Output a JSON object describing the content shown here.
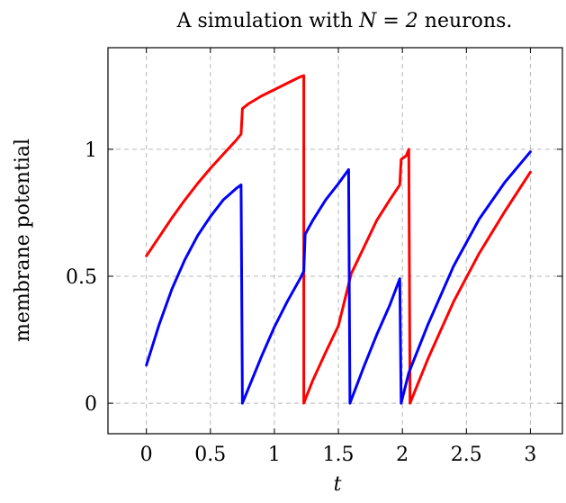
{
  "chart_data": {
    "type": "line",
    "title_pre": "A simulation with ",
    "title_math": "N = 2",
    "title_post": " neurons.",
    "xlabel": "t",
    "ylabel": "membrane potential",
    "xlim": [
      -0.3,
      3.25
    ],
    "ylim": [
      -0.12,
      1.4
    ],
    "xticks": [
      0,
      0.5,
      1,
      1.5,
      2,
      2.5,
      3
    ],
    "xtick_labels": [
      "0",
      "0.5",
      "1",
      "1.5",
      "2",
      "2.5",
      "3"
    ],
    "yticks": [
      0,
      0.5,
      1
    ],
    "ytick_labels": [
      "0",
      "0.5",
      "1"
    ],
    "grid": true,
    "series": [
      {
        "color": "#ff0000",
        "points": [
          [
            0,
            0.58
          ],
          [
            0.1,
            0.655
          ],
          [
            0.2,
            0.73
          ],
          [
            0.3,
            0.8
          ],
          [
            0.4,
            0.865
          ],
          [
            0.5,
            0.925
          ],
          [
            0.6,
            0.98
          ],
          [
            0.7,
            1.035
          ],
          [
            0.74,
            1.06
          ],
          [
            0.75,
            1.16
          ],
          [
            0.8,
            1.18
          ],
          [
            0.9,
            1.21
          ],
          [
            1.0,
            1.235
          ],
          [
            1.1,
            1.26
          ],
          [
            1.2,
            1.285
          ],
          [
            1.23,
            1.29
          ],
          [
            1.23,
            0
          ],
          [
            1.3,
            0.09
          ],
          [
            1.4,
            0.2
          ],
          [
            1.5,
            0.305
          ],
          [
            1.6,
            0.51
          ],
          [
            1.7,
            0.615
          ],
          [
            1.8,
            0.72
          ],
          [
            1.9,
            0.8
          ],
          [
            1.98,
            0.86
          ],
          [
            1.99,
            0.96
          ],
          [
            2.03,
            0.975
          ],
          [
            2.05,
            1.0
          ],
          [
            2.06,
            0
          ],
          [
            2.2,
            0.175
          ],
          [
            2.4,
            0.4
          ],
          [
            2.6,
            0.59
          ],
          [
            2.8,
            0.755
          ],
          [
            3.0,
            0.91
          ]
        ]
      },
      {
        "color": "#0000ff",
        "points": [
          [
            0,
            0.15
          ],
          [
            0.1,
            0.31
          ],
          [
            0.2,
            0.45
          ],
          [
            0.3,
            0.565
          ],
          [
            0.4,
            0.66
          ],
          [
            0.5,
            0.735
          ],
          [
            0.6,
            0.8
          ],
          [
            0.7,
            0.845
          ],
          [
            0.74,
            0.86
          ],
          [
            0.75,
            0
          ],
          [
            0.9,
            0.185
          ],
          [
            1.0,
            0.3
          ],
          [
            1.1,
            0.4
          ],
          [
            1.2,
            0.49
          ],
          [
            1.23,
            0.52
          ],
          [
            1.24,
            0.665
          ],
          [
            1.3,
            0.72
          ],
          [
            1.4,
            0.8
          ],
          [
            1.5,
            0.865
          ],
          [
            1.58,
            0.92
          ],
          [
            1.59,
            0
          ],
          [
            1.7,
            0.145
          ],
          [
            1.8,
            0.27
          ],
          [
            1.9,
            0.385
          ],
          [
            1.98,
            0.49
          ],
          [
            1.99,
            0
          ],
          [
            2.05,
            0.12
          ],
          [
            2.2,
            0.31
          ],
          [
            2.4,
            0.54
          ],
          [
            2.6,
            0.725
          ],
          [
            2.8,
            0.87
          ],
          [
            3.0,
            0.99
          ]
        ]
      }
    ]
  }
}
